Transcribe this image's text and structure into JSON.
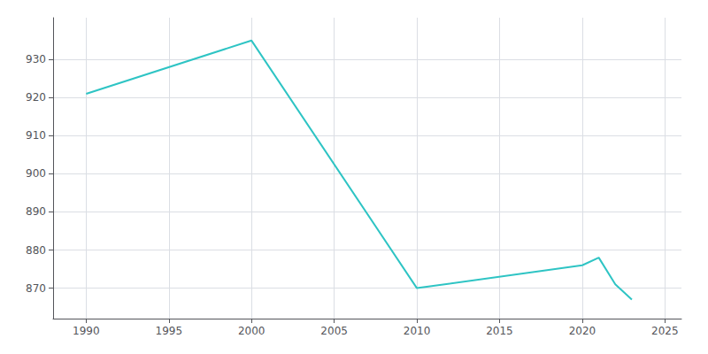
{
  "chart_data": {
    "type": "line",
    "x": [
      1990,
      2000,
      2010,
      2020,
      2021,
      2022,
      2023
    ],
    "values": [
      921,
      935,
      870,
      876,
      878,
      871,
      867
    ],
    "color": "#2ec4c4",
    "xlim": [
      1988,
      2026
    ],
    "xticks": [
      1990,
      1995,
      2000,
      2005,
      2010,
      2015,
      2020,
      2025
    ],
    "ylim": [
      862,
      941
    ],
    "yticks": [
      870,
      880,
      890,
      900,
      910,
      920,
      930
    ],
    "grid": true
  }
}
